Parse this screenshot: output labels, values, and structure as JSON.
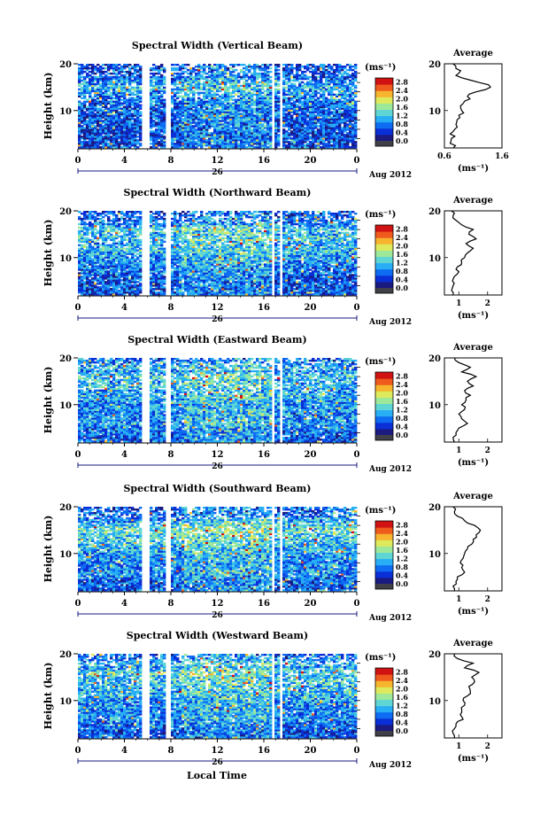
{
  "figure": {
    "xlabel": "Local Time",
    "date_label": "Aug 2012",
    "day_label": "26",
    "ylabel": "Height (km)",
    "cbar_unit": "(ms⁻¹)",
    "avg_title": "Average",
    "avg_xlabel": "(ms⁻¹)"
  },
  "colors": {
    "colormap": [
      "#1a1a80",
      "#0a2fd6",
      "#0e6cf2",
      "#27aef5",
      "#5fd6d3",
      "#9ee89a",
      "#dfe95c",
      "#f6b52d",
      "#ef5a1d",
      "#d01212"
    ],
    "lowest": "#404048",
    "line": "#000000"
  },
  "chart_data": [
    {
      "type": "heatmap",
      "title": "Spectral Width (Vertical Beam)",
      "x_ticks": [
        "0",
        "4",
        "8",
        "12",
        "16",
        "20",
        "0"
      ],
      "xlim": [
        0,
        24
      ],
      "ylim": [
        2,
        20
      ],
      "y_ticks": [
        "20",
        "10"
      ],
      "colorbar_ticks": [
        "2.8",
        "2.4",
        "2.0",
        "1.6",
        "1.2",
        "0.8",
        "0.4",
        "0.0"
      ],
      "colorbar_range": [
        0,
        3.0
      ],
      "data_gaps_hours": [
        [
          5.5,
          6.2
        ],
        [
          7.6,
          8.0
        ],
        [
          16.7,
          17.0
        ],
        [
          17.4,
          17.6
        ]
      ],
      "average_profile": {
        "xlim": [
          0.6,
          1.6
        ],
        "x_ticks": [
          "0.6",
          "1.6"
        ],
        "y_ticks": [
          "20",
          "10"
        ],
        "height_km": [
          2,
          3,
          4,
          5,
          6,
          7,
          8,
          9,
          10,
          11,
          12,
          13,
          14,
          15,
          16,
          17,
          18,
          19,
          20
        ],
        "width_ms": [
          0.75,
          0.7,
          0.72,
          0.7,
          0.78,
          0.8,
          0.82,
          0.85,
          0.9,
          0.88,
          0.95,
          1.0,
          1.15,
          1.4,
          1.2,
          0.9,
          0.85,
          0.8,
          0.75
        ]
      }
    },
    {
      "type": "heatmap",
      "title": "Spectral Width (Northward Beam)",
      "x_ticks": [
        "0",
        "4",
        "8",
        "12",
        "16",
        "20",
        "0"
      ],
      "xlim": [
        0,
        24
      ],
      "ylim": [
        2,
        20
      ],
      "y_ticks": [
        "20",
        "10"
      ],
      "colorbar_ticks": [
        "2.8",
        "2.4",
        "2.0",
        "1.6",
        "1.2",
        "0.8",
        "0.4",
        "0.0"
      ],
      "colorbar_range": [
        0,
        3.0
      ],
      "data_gaps_hours": [
        [
          5.5,
          6.2
        ],
        [
          7.6,
          8.0
        ],
        [
          16.7,
          17.0
        ],
        [
          17.4,
          17.6
        ]
      ],
      "average_profile": {
        "xlim": [
          0.5,
          2.5
        ],
        "x_ticks": [
          "1",
          "2"
        ],
        "y_ticks": [
          "20",
          "10"
        ],
        "height_km": [
          2,
          3,
          4,
          5,
          6,
          7,
          8,
          9,
          10,
          11,
          12,
          13,
          14,
          15,
          16,
          17,
          18,
          19,
          20
        ],
        "width_ms": [
          0.8,
          0.75,
          0.8,
          0.78,
          0.85,
          1.0,
          0.95,
          1.1,
          1.2,
          1.3,
          1.5,
          1.25,
          1.6,
          1.35,
          1.5,
          1.1,
          0.9,
          0.8,
          0.75
        ]
      }
    },
    {
      "type": "heatmap",
      "title": "Spectral Width (Eastward Beam)",
      "x_ticks": [
        "0",
        "4",
        "8",
        "12",
        "16",
        "20",
        "0"
      ],
      "xlim": [
        0,
        24
      ],
      "ylim": [
        2,
        20
      ],
      "y_ticks": [
        "20",
        "10"
      ],
      "colorbar_ticks": [
        "2.8",
        "2.4",
        "2.0",
        "1.6",
        "1.2",
        "0.8",
        "0.4",
        "0.0"
      ],
      "colorbar_range": [
        0,
        3.0
      ],
      "data_gaps_hours": [
        [
          5.5,
          6.2
        ],
        [
          7.6,
          8.0
        ],
        [
          16.7,
          17.0
        ],
        [
          17.4,
          17.6
        ]
      ],
      "average_profile": {
        "xlim": [
          0.5,
          2.5
        ],
        "x_ticks": [
          "1",
          "2"
        ],
        "y_ticks": [
          "20",
          "10"
        ],
        "height_km": [
          2,
          3,
          4,
          5,
          6,
          7,
          8,
          9,
          10,
          11,
          12,
          13,
          14,
          15,
          16,
          17,
          18,
          19,
          20
        ],
        "width_ms": [
          0.85,
          0.8,
          0.9,
          1.0,
          1.3,
          1.1,
          1.0,
          1.2,
          1.1,
          1.25,
          1.4,
          1.2,
          1.5,
          1.3,
          1.6,
          1.1,
          1.4,
          1.0,
          0.85
        ]
      }
    },
    {
      "type": "heatmap",
      "title": "Spectral Width (Southward Beam)",
      "x_ticks": [
        "0",
        "4",
        "8",
        "12",
        "16",
        "20",
        "0"
      ],
      "xlim": [
        0,
        24
      ],
      "ylim": [
        2,
        20
      ],
      "y_ticks": [
        "20",
        "10"
      ],
      "colorbar_ticks": [
        "2.8",
        "2.4",
        "2.0",
        "1.6",
        "1.2",
        "0.8",
        "0.4",
        "0.0"
      ],
      "colorbar_range": [
        0,
        3.0
      ],
      "data_gaps_hours": [
        [
          5.5,
          6.2
        ],
        [
          7.6,
          8.0
        ],
        [
          16.7,
          17.0
        ],
        [
          17.4,
          17.6
        ]
      ],
      "average_profile": {
        "xlim": [
          0.5,
          2.5
        ],
        "x_ticks": [
          "1",
          "2"
        ],
        "y_ticks": [
          "20",
          "10"
        ],
        "height_km": [
          2,
          3,
          4,
          5,
          6,
          7,
          8,
          9,
          10,
          11,
          12,
          13,
          14,
          15,
          16,
          17,
          18,
          19,
          20
        ],
        "width_ms": [
          0.85,
          0.8,
          0.9,
          0.95,
          1.2,
          1.1,
          1.05,
          1.15,
          1.2,
          1.3,
          1.45,
          1.5,
          1.6,
          1.75,
          1.55,
          1.2,
          0.95,
          0.85,
          0.8
        ]
      }
    },
    {
      "type": "heatmap",
      "title": "Spectral Width (Westward Beam)",
      "x_ticks": [
        "0",
        "4",
        "8",
        "12",
        "16",
        "20",
        "0"
      ],
      "xlim": [
        0,
        24
      ],
      "ylim": [
        2,
        20
      ],
      "y_ticks": [
        "20",
        "10"
      ],
      "colorbar_ticks": [
        "2.8",
        "2.4",
        "2.0",
        "1.6",
        "1.2",
        "0.8",
        "0.4",
        "0.0"
      ],
      "colorbar_range": [
        0,
        3.0
      ],
      "data_gaps_hours": [
        [
          5.5,
          6.2
        ],
        [
          7.6,
          8.0
        ],
        [
          16.7,
          17.0
        ],
        [
          17.4,
          17.6
        ]
      ],
      "average_profile": {
        "xlim": [
          0.5,
          2.5
        ],
        "x_ticks": [
          "1",
          "2"
        ],
        "y_ticks": [
          "20",
          "10"
        ],
        "height_km": [
          2,
          3,
          4,
          5,
          6,
          7,
          8,
          9,
          10,
          11,
          12,
          13,
          14,
          15,
          16,
          17,
          18,
          19,
          20
        ],
        "width_ms": [
          0.85,
          0.8,
          0.85,
          0.9,
          1.15,
          1.05,
          1.1,
          1.2,
          1.15,
          1.3,
          1.4,
          1.35,
          1.55,
          1.45,
          1.7,
          1.2,
          1.5,
          0.95,
          0.85
        ]
      }
    }
  ]
}
